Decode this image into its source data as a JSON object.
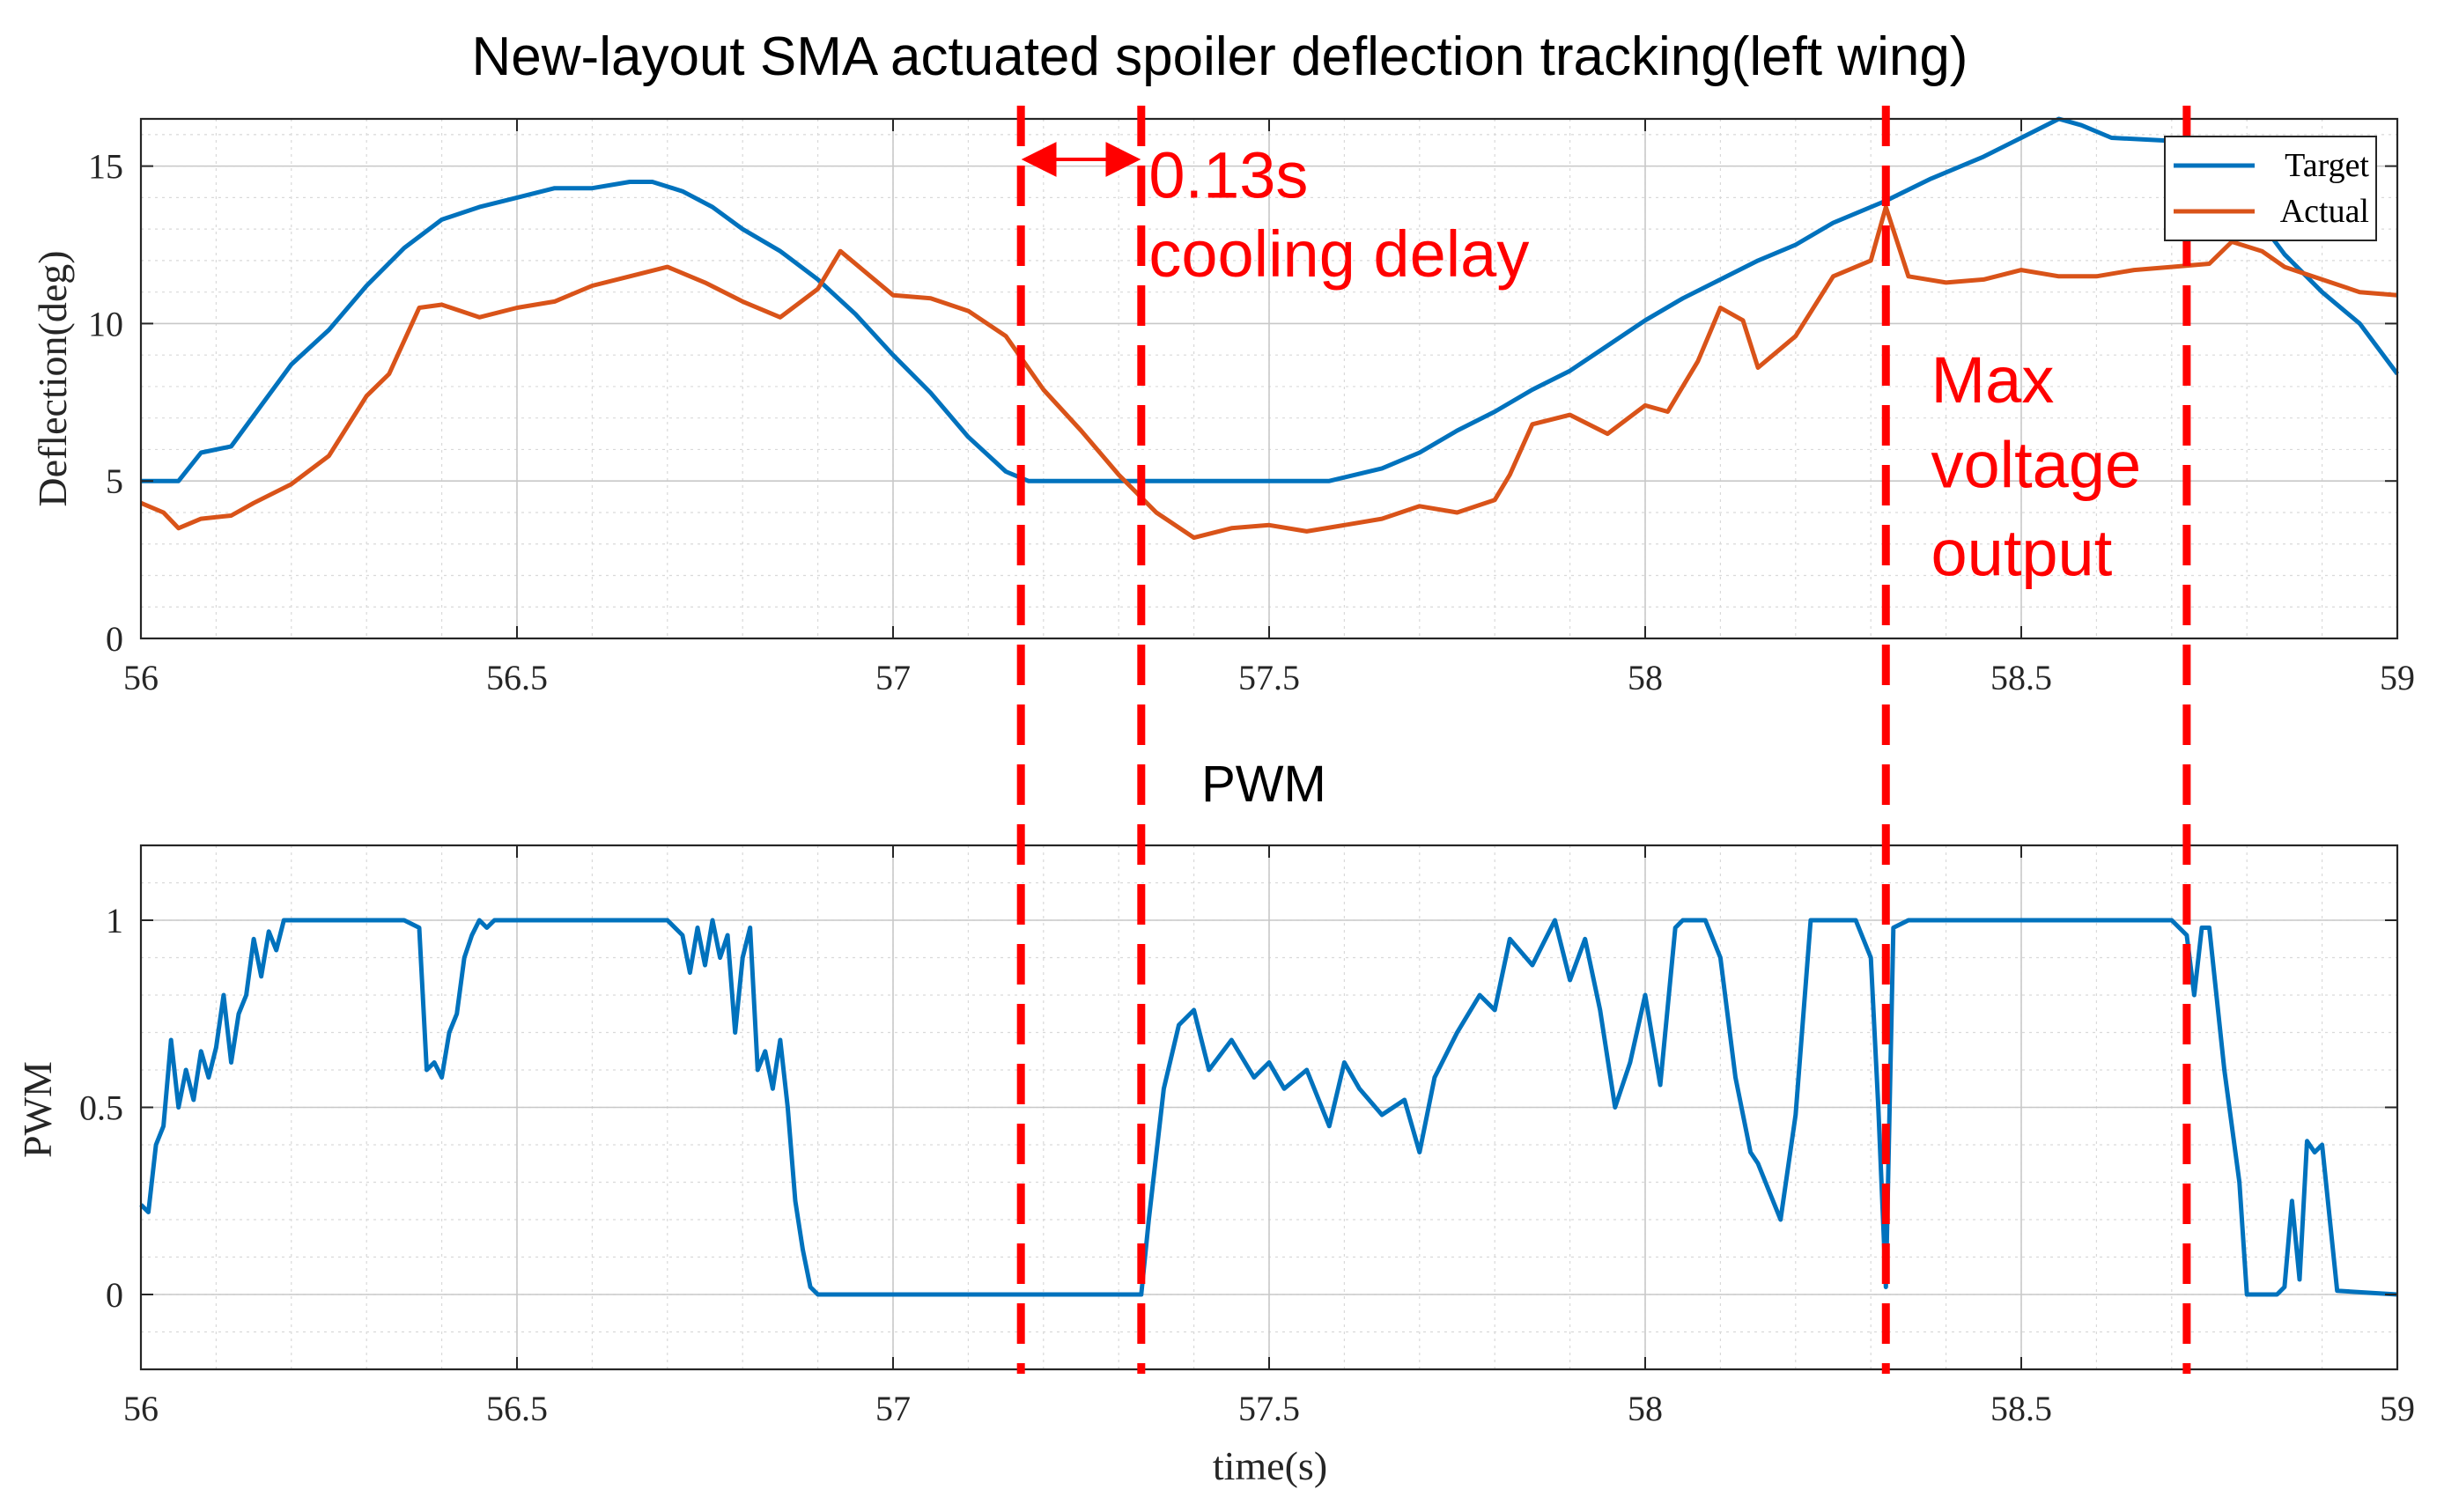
{
  "chart_data": [
    {
      "type": "line",
      "title": "New-layout SMA actuated spoiler deflection tracking(left wing)",
      "xlabel": "",
      "ylabel": "Deflection(deg)",
      "xlim": [
        56,
        59
      ],
      "ylim": [
        0,
        16.5
      ],
      "xticks": [
        56,
        56.5,
        57,
        57.5,
        58,
        58.5,
        59
      ],
      "yticks": [
        0,
        5,
        10,
        15
      ],
      "grid": true,
      "minor_grid": true,
      "legend_position": "top-right",
      "series": [
        {
          "name": "Target",
          "color": "#0072BD",
          "x": [
            56.0,
            56.05,
            56.08,
            56.12,
            56.16,
            56.2,
            56.25,
            56.3,
            56.35,
            56.4,
            56.45,
            56.5,
            56.55,
            56.6,
            56.65,
            56.68,
            56.72,
            56.76,
            56.8,
            56.85,
            56.9,
            56.95,
            57.0,
            57.05,
            57.1,
            57.15,
            57.18,
            57.3,
            57.45,
            57.58,
            57.65,
            57.7,
            57.75,
            57.8,
            57.85,
            57.9,
            57.95,
            58.0,
            58.05,
            58.1,
            58.15,
            58.2,
            58.25,
            58.32,
            58.38,
            58.45,
            58.5,
            58.55,
            58.58,
            58.62,
            58.7,
            58.75,
            58.8,
            58.85,
            58.9,
            58.95,
            59.0
          ],
          "y": [
            5.0,
            5.0,
            5.9,
            6.1,
            7.4,
            8.7,
            9.8,
            11.2,
            12.4,
            13.3,
            13.7,
            14.0,
            14.3,
            14.3,
            14.5,
            14.5,
            14.2,
            13.7,
            13.0,
            12.3,
            11.4,
            10.3,
            9.0,
            7.8,
            6.4,
            5.3,
            5.0,
            5.0,
            5.0,
            5.0,
            5.4,
            5.9,
            6.6,
            7.2,
            7.9,
            8.5,
            9.3,
            10.1,
            10.8,
            11.4,
            12.0,
            12.5,
            13.2,
            13.9,
            14.6,
            15.3,
            15.9,
            16.5,
            16.3,
            15.9,
            15.8,
            14.9,
            13.8,
            12.2,
            11.0,
            10.0,
            8.4
          ]
        },
        {
          "name": "Actual",
          "color": "#D95319",
          "x": [
            56.0,
            56.03,
            56.05,
            56.08,
            56.12,
            56.15,
            56.2,
            56.25,
            56.3,
            56.33,
            56.37,
            56.4,
            56.45,
            56.5,
            56.55,
            56.6,
            56.65,
            56.7,
            56.75,
            56.8,
            56.85,
            56.9,
            56.93,
            56.97,
            57.0,
            57.05,
            57.1,
            57.15,
            57.2,
            57.25,
            57.3,
            57.35,
            57.4,
            57.45,
            57.5,
            57.55,
            57.6,
            57.65,
            57.7,
            57.75,
            57.8,
            57.82,
            57.85,
            57.9,
            57.95,
            58.0,
            58.03,
            58.07,
            58.1,
            58.13,
            58.15,
            58.2,
            58.25,
            58.3,
            58.32,
            58.35,
            58.4,
            58.45,
            58.5,
            58.55,
            58.6,
            58.65,
            58.7,
            58.75,
            58.78,
            58.82,
            58.85,
            58.9,
            58.95,
            59.0
          ],
          "y": [
            4.3,
            4.0,
            3.5,
            3.8,
            3.9,
            4.3,
            4.9,
            5.8,
            7.7,
            8.4,
            10.5,
            10.6,
            10.2,
            10.5,
            10.7,
            11.2,
            11.5,
            11.8,
            11.3,
            10.7,
            10.2,
            11.1,
            12.3,
            11.5,
            10.9,
            10.8,
            10.4,
            9.6,
            7.9,
            6.6,
            5.2,
            4.0,
            3.2,
            3.5,
            3.6,
            3.4,
            3.6,
            3.8,
            4.2,
            4.0,
            4.4,
            5.2,
            6.8,
            7.1,
            6.5,
            7.4,
            7.2,
            8.8,
            10.5,
            10.1,
            8.6,
            9.6,
            11.5,
            12.0,
            13.7,
            11.5,
            11.3,
            11.4,
            11.7,
            11.5,
            11.5,
            11.7,
            11.8,
            11.9,
            12.6,
            12.3,
            11.8,
            11.4,
            11.0,
            10.9
          ]
        }
      ],
      "annotations": [
        {
          "text": "0.13s",
          "x": 57.34,
          "y": 14.0
        },
        {
          "text": "cooling delay",
          "x": 57.34,
          "y": 11.5
        },
        {
          "text": "Max",
          "x": 58.38,
          "y": 7.5
        },
        {
          "text": "voltage",
          "x": 58.38,
          "y": 4.8
        },
        {
          "text": "output",
          "x": 58.38,
          "y": 2.0
        }
      ]
    },
    {
      "type": "line",
      "title": "PWM",
      "xlabel": "time(s)",
      "ylabel": "PWM",
      "xlim": [
        56,
        59
      ],
      "ylim": [
        -0.2,
        1.2
      ],
      "xticks": [
        56,
        56.5,
        57,
        57.5,
        58,
        58.5,
        59
      ],
      "yticks": [
        0,
        0.5,
        1
      ],
      "grid": true,
      "minor_grid": true,
      "series": [
        {
          "name": "PWM",
          "color": "#0072BD",
          "x": [
            56.0,
            56.01,
            56.02,
            56.03,
            56.04,
            56.05,
            56.06,
            56.07,
            56.08,
            56.09,
            56.1,
            56.11,
            56.12,
            56.13,
            56.14,
            56.15,
            56.16,
            56.17,
            56.18,
            56.19,
            56.2,
            56.25,
            56.3,
            56.35,
            56.37,
            56.38,
            56.39,
            56.4,
            56.41,
            56.42,
            56.43,
            56.44,
            56.45,
            56.46,
            56.47,
            56.5,
            56.6,
            56.7,
            56.72,
            56.73,
            56.74,
            56.75,
            56.76,
            56.77,
            56.78,
            56.79,
            56.8,
            56.81,
            56.82,
            56.83,
            56.84,
            56.85,
            56.86,
            56.87,
            56.88,
            56.89,
            56.9,
            56.92,
            57.0,
            57.2,
            57.33,
            57.34,
            57.36,
            57.38,
            57.4,
            57.42,
            57.45,
            57.48,
            57.5,
            57.52,
            57.55,
            57.58,
            57.6,
            57.62,
            57.65,
            57.68,
            57.7,
            57.72,
            57.75,
            57.78,
            57.8,
            57.82,
            57.85,
            57.88,
            57.9,
            57.92,
            57.94,
            57.96,
            57.98,
            58.0,
            58.02,
            58.04,
            58.05,
            58.07,
            58.08,
            58.1,
            58.12,
            58.14,
            58.15,
            58.18,
            58.2,
            58.22,
            58.25,
            58.28,
            58.3,
            58.31,
            58.32,
            58.33,
            58.35,
            58.4,
            58.6,
            58.7,
            58.72,
            58.73,
            58.74,
            58.75,
            58.77,
            58.79,
            58.8,
            58.82,
            58.84,
            58.85,
            58.86,
            58.87,
            58.88,
            58.89,
            58.9,
            58.92,
            59.0
          ],
          "y": [
            0.24,
            0.22,
            0.4,
            0.45,
            0.68,
            0.5,
            0.6,
            0.52,
            0.65,
            0.58,
            0.66,
            0.8,
            0.62,
            0.75,
            0.8,
            0.95,
            0.85,
            0.97,
            0.92,
            1.0,
            1.0,
            1.0,
            1.0,
            1.0,
            0.98,
            0.6,
            0.62,
            0.58,
            0.7,
            0.75,
            0.9,
            0.96,
            1.0,
            0.98,
            1.0,
            1.0,
            1.0,
            1.0,
            0.96,
            0.86,
            0.98,
            0.88,
            1.0,
            0.9,
            0.96,
            0.7,
            0.9,
            0.98,
            0.6,
            0.65,
            0.55,
            0.68,
            0.5,
            0.25,
            0.12,
            0.02,
            0.0,
            0.0,
            0.0,
            0.0,
            0.0,
            0.2,
            0.55,
            0.72,
            0.76,
            0.6,
            0.68,
            0.58,
            0.62,
            0.55,
            0.6,
            0.45,
            0.62,
            0.55,
            0.48,
            0.52,
            0.38,
            0.58,
            0.7,
            0.8,
            0.76,
            0.95,
            0.88,
            1.0,
            0.84,
            0.95,
            0.76,
            0.5,
            0.62,
            0.8,
            0.56,
            0.98,
            1.0,
            1.0,
            1.0,
            0.9,
            0.58,
            0.38,
            0.35,
            0.2,
            0.48,
            1.0,
            1.0,
            1.0,
            0.9,
            0.5,
            0.02,
            0.98,
            1.0,
            1.0,
            1.0,
            1.0,
            0.96,
            0.8,
            0.98,
            0.98,
            0.6,
            0.3,
            0.0,
            0.0,
            0.0,
            0.02,
            0.25,
            0.04,
            0.41,
            0.38,
            0.4,
            0.01,
            0.0
          ]
        }
      ]
    }
  ],
  "markers": {
    "vlines_time": [
      57.17,
      57.33,
      58.32,
      58.72
    ],
    "delay_arrow_from": 57.18,
    "delay_arrow_to": 57.32,
    "marker_color": "#FF0000"
  }
}
